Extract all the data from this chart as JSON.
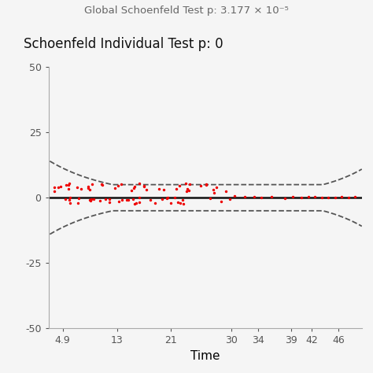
{
  "title_top": "Global Schoenfeld Test p: 3.177 × 10⁻⁵",
  "subtitle": "Schoenfeld Individual Test p: 0",
  "xlabel": "Time",
  "xlim": [
    2.8,
    49.5
  ],
  "ylim": [
    -50,
    50
  ],
  "yticks": [
    -50,
    -25,
    0,
    25,
    50
  ],
  "xticks": [
    4.9,
    13,
    21,
    30,
    34,
    39,
    42,
    46
  ],
  "xtick_labels": [
    "4.9",
    "13",
    "21",
    "30",
    "34",
    "39",
    "42",
    "46"
  ],
  "background_color": "#f5f5f5",
  "loess_line_color": "#111111",
  "ci_color": "#444444",
  "dot_color": "#ee0000",
  "dot_size": 6,
  "dot_alpha": 1.0,
  "spine_color": "#aaaaaa",
  "tick_color": "#555555",
  "title_color": "#666666",
  "subtitle_color": "#111111",
  "title_fontsize": 9.5,
  "subtitle_fontsize": 12,
  "xlabel_fontsize": 11,
  "tick_fontsize": 9,
  "loess_linewidth": 1.8,
  "ci_linewidth": 1.3
}
